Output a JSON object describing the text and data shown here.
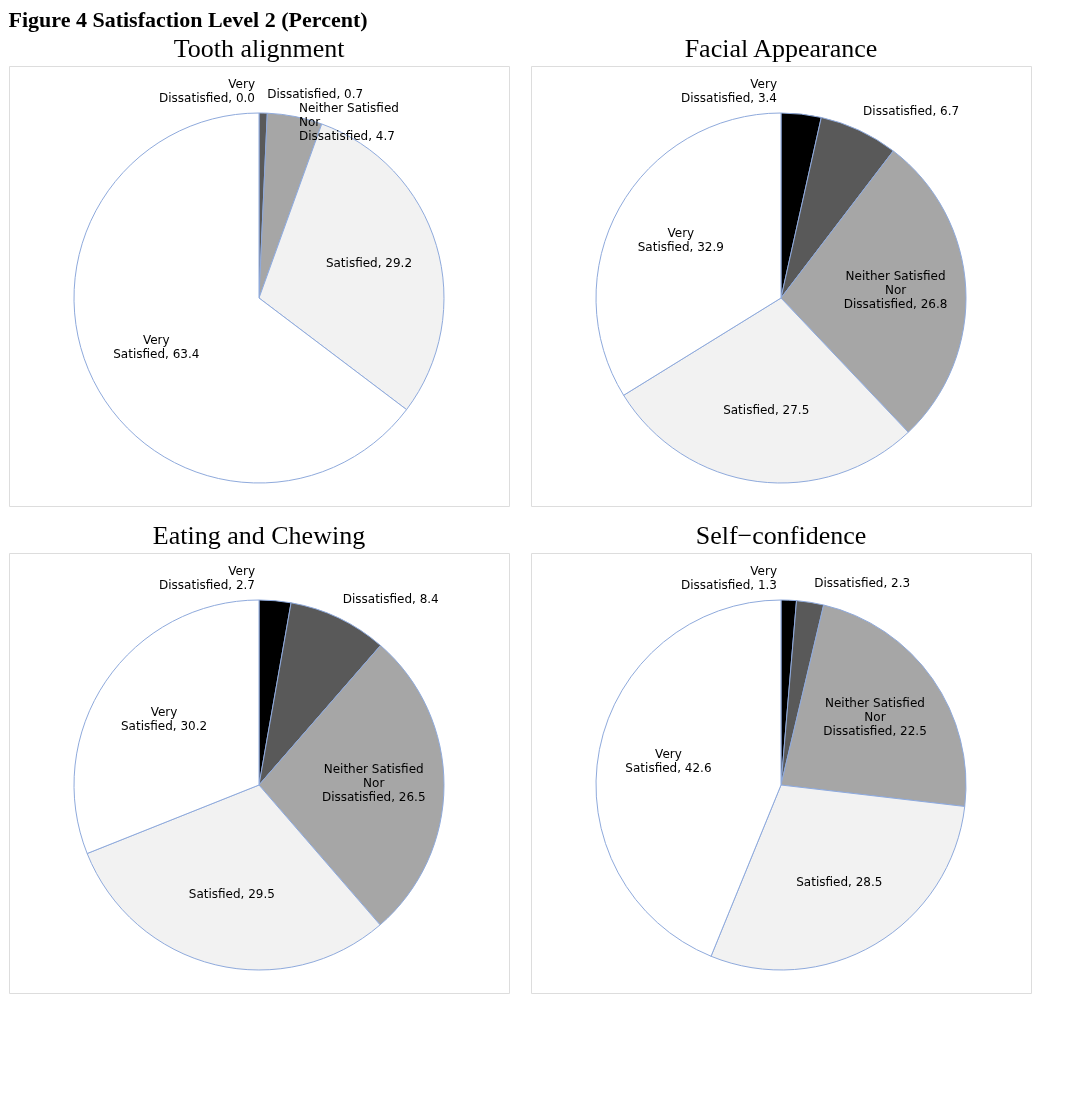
{
  "chart_data": [
    {
      "type": "pie",
      "title": "Tooth alignment",
      "annotations": [
        "Figure 4 Satisfaction Level 2 (Percent)"
      ],
      "values": [
        0.0,
        0.7,
        4.7,
        29.2,
        63.4
      ],
      "colors": [
        "#000000",
        "#595959",
        "#a6a6a6",
        "#f2f2f2",
        "#ffffff"
      ],
      "value_labels": [
        "Very Dissatisfied, 0.0",
        "Dissatisfied, 0.7",
        "Neither Satisfied Nor Dissatisfied, 4.7",
        "Satisfied, 29.2",
        "Very Satisfied, 63.4"
      ],
      "legend": false
    },
    {
      "type": "pie",
      "title": "Facial Appearance",
      "values": [
        3.4,
        6.7,
        26.8,
        27.5,
        32.9
      ],
      "colors": [
        "#000000",
        "#595959",
        "#a6a6a6",
        "#f2f2f2",
        "#ffffff"
      ],
      "value_labels": [
        "Very Dissatisfied, 3.4",
        "Dissatisfied, 6.7",
        "Neither Satisfied Nor Dissatisfied, 26.8",
        "Satisfied, 27.5",
        "Very Satisfied, 32.9"
      ],
      "legend": false
    },
    {
      "type": "pie",
      "title": "Eating and Chewing",
      "values": [
        2.7,
        8.4,
        26.5,
        29.5,
        30.2
      ],
      "colors": [
        "#000000",
        "#595959",
        "#a6a6a6",
        "#f2f2f2",
        "#ffffff"
      ],
      "value_labels": [
        "Very Dissatisfied, 2.7",
        "Dissatisfied, 8.4",
        "Neither Satisfied Nor Dissatisfied, 26.5",
        "Satisfied, 29.5",
        "Very Satisfied, 30.2"
      ],
      "legend": false
    },
    {
      "type": "pie",
      "title": "Self−confidence",
      "values": [
        1.3,
        2.3,
        22.5,
        28.5,
        42.6
      ],
      "colors": [
        "#000000",
        "#595959",
        "#a6a6a6",
        "#f2f2f2",
        "#ffffff"
      ],
      "value_labels": [
        "Very Dissatisfied, 1.3",
        "Dissatisfied, 2.3",
        "Neither Satisfied Nor Dissatisfied, 22.5",
        "Satisfied, 28.5",
        "Very Satisfied, 42.6"
      ],
      "legend": false
    }
  ]
}
